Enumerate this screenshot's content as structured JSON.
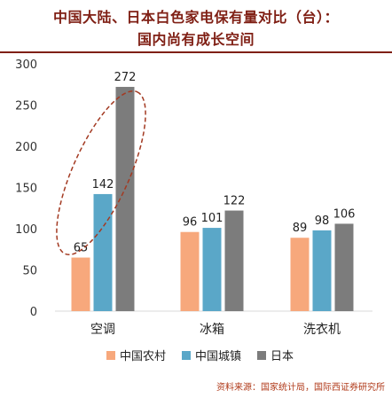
{
  "title": {
    "line1": "中国大陆、日本白色家电保有量对比（台）：",
    "line2": "国内尚有成长空间"
  },
  "source": "资料来源：国家统计局，国际西证券研究所",
  "colors": {
    "title": "#7f1f14",
    "series": [
      "#f7a87c",
      "#5aa7c8",
      "#7c7c7c"
    ],
    "highlight_ellipse": "#a33a22",
    "axis_text": "#333333"
  },
  "chart_data": {
    "type": "bar",
    "categories": [
      "空调",
      "冰箱",
      "洗衣机"
    ],
    "series": [
      {
        "name": "中国农村",
        "values": [
          65,
          96,
          89
        ]
      },
      {
        "name": "中国城镇",
        "values": [
          142,
          101,
          98
        ]
      },
      {
        "name": "日本",
        "values": [
          272,
          122,
          106
        ]
      }
    ],
    "ylim": [
      0,
      300
    ],
    "yticks": [
      0,
      50,
      100,
      150,
      200,
      250,
      300
    ],
    "grid": false,
    "legend": "bottom",
    "data_labels": true,
    "annotation": "dashed ellipse around 空调 group"
  }
}
